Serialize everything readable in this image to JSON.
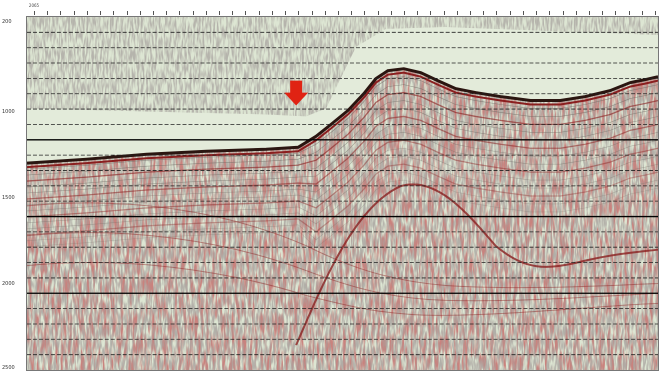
{
  "image": {
    "type": "seismic reflection section",
    "color_scheme": "variable density, red-black peaks on pale green",
    "colors": {
      "background": "#dde6d3",
      "texture_dark": "#6e6a62",
      "reflector_red": "#8a1f1f",
      "reflector_black": "#2a1510",
      "arrow": "#e02313",
      "grid_solid": "#000000",
      "grid_dashed": "#222222"
    }
  },
  "time_axis": {
    "labels": [
      "200",
      "1000",
      "1500",
      "2000",
      "2500"
    ],
    "range": [
      200,
      2500
    ],
    "solid_line_times": [
      1000,
      1500,
      2000,
      2500
    ],
    "dashed_line_interval": 100
  },
  "shot_axis": {
    "first_label": "2065",
    "tick_count": 48
  },
  "annotation": {
    "icon": "down-arrow-icon",
    "color": "#e02313",
    "points_to": "base of upslope sediment wedge"
  }
}
